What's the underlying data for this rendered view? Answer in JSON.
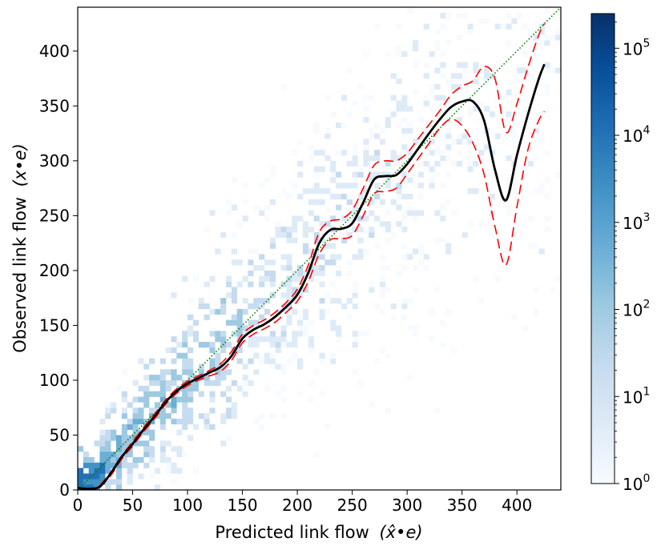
{
  "chart_data": {
    "type": "heatmap",
    "title": "",
    "xlabel_text": "Predicted link flow",
    "xlabel_math": "(x̂•e)",
    "ylabel_text": "Observed link flow",
    "ylabel_math": "(x•e)",
    "xlim": [
      0,
      440
    ],
    "ylim": [
      0,
      440
    ],
    "x_ticks": [
      0,
      50,
      100,
      150,
      200,
      250,
      300,
      350,
      400
    ],
    "y_ticks": [
      0,
      50,
      100,
      150,
      200,
      250,
      300,
      350,
      400
    ],
    "colorbar": {
      "scale": "log",
      "range": [
        1,
        250000
      ],
      "ticks": [
        {
          "value": 1,
          "base": "10",
          "exp": "0"
        },
        {
          "value": 10,
          "base": "10",
          "exp": "1"
        },
        {
          "value": 100,
          "base": "10",
          "exp": "2"
        },
        {
          "value": 1000,
          "base": "10",
          "exp": "3"
        },
        {
          "value": 10000,
          "base": "10",
          "exp": "4"
        },
        {
          "value": 100000,
          "base": "10",
          "exp": "5"
        }
      ],
      "colormap": "Blues"
    },
    "series": [
      {
        "style": "solid-black",
        "color": "#000000",
        "x": [
          0,
          10,
          20,
          30,
          40,
          50,
          60,
          70,
          80,
          90,
          100,
          110,
          120,
          130,
          140,
          150,
          160,
          170,
          180,
          190,
          200,
          210,
          220,
          230,
          240,
          250,
          260,
          270,
          280,
          290,
          300,
          310,
          320,
          330,
          340,
          350,
          360,
          370,
          380,
          390,
          400,
          410,
          420,
          425
        ],
        "y": [
          2,
          1,
          3,
          15,
          30,
          42,
          55,
          67,
          80,
          90,
          97,
          102,
          107,
          112,
          122,
          138,
          146,
          151,
          158,
          167,
          178,
          198,
          225,
          237,
          238,
          243,
          262,
          283,
          286,
          287,
          297,
          311,
          325,
          338,
          349,
          354,
          354,
          337,
          292,
          264,
          305,
          342,
          375,
          388
        ]
      },
      {
        "style": "dashed-red-upper",
        "color": "#ff0000",
        "x": [
          20,
          30,
          40,
          50,
          60,
          70,
          80,
          90,
          100,
          110,
          120,
          130,
          140,
          150,
          160,
          170,
          180,
          190,
          200,
          210,
          220,
          230,
          240,
          250,
          260,
          270,
          280,
          290,
          300,
          310,
          320,
          330,
          340,
          350,
          360,
          370,
          380,
          390,
          400,
          410,
          420,
          425
        ],
        "y": [
          4,
          16,
          31,
          44,
          57,
          69,
          82,
          92,
          99,
          104,
          109,
          115,
          126,
          142,
          150,
          155,
          162,
          171,
          183,
          205,
          235,
          245,
          247,
          255,
          275,
          296,
          300,
          300,
          307,
          320,
          333,
          346,
          360,
          368,
          373,
          386,
          375,
          326,
          352,
          385,
          415,
          425
        ]
      },
      {
        "style": "dashed-red-lower",
        "color": "#ff0000",
        "x": [
          20,
          30,
          40,
          50,
          60,
          70,
          80,
          90,
          100,
          110,
          120,
          130,
          140,
          150,
          160,
          170,
          180,
          190,
          200,
          210,
          220,
          230,
          240,
          250,
          260,
          270,
          280,
          290,
          300,
          310,
          320,
          330,
          340,
          350,
          360,
          370,
          380,
          390,
          400,
          410,
          420,
          425
        ],
        "y": [
          2,
          13,
          28,
          40,
          53,
          65,
          78,
          88,
          95,
          100,
          104,
          108,
          118,
          134,
          142,
          147,
          153,
          162,
          172,
          190,
          215,
          228,
          229,
          232,
          250,
          270,
          272,
          275,
          288,
          302,
          316,
          330,
          338,
          332,
          316,
          288,
          240,
          205,
          258,
          310,
          337,
          345
        ]
      },
      {
        "style": "dotted-green-identity",
        "color": "#008000",
        "x": [
          0,
          440
        ],
        "y": [
          0,
          440
        ]
      }
    ]
  }
}
